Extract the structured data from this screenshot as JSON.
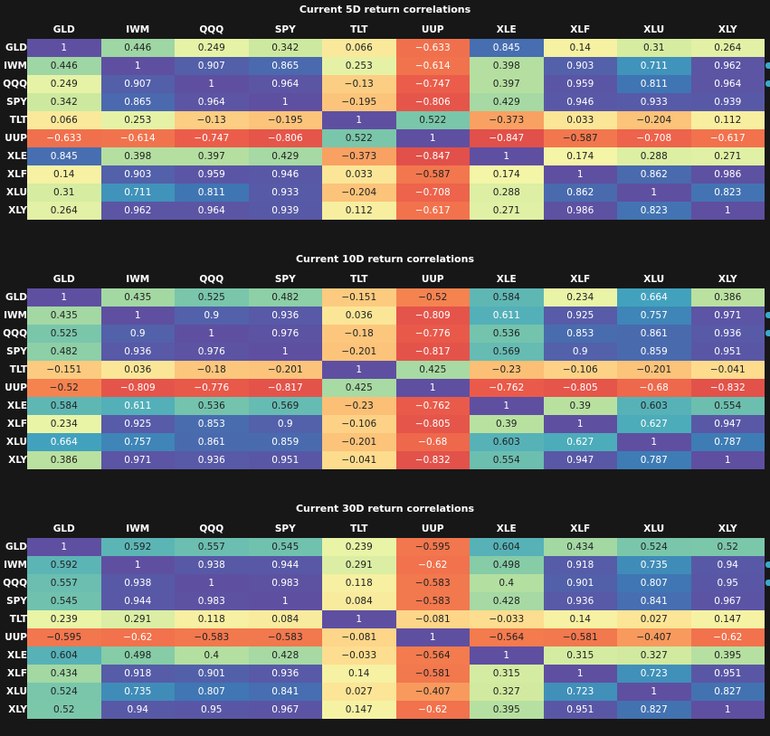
{
  "tickers": [
    "GLD",
    "IWM",
    "QQQ",
    "SPY",
    "TLT",
    "UUP",
    "XLE",
    "XLF",
    "XLU",
    "XLY"
  ],
  "colors": {
    "background": "#171717",
    "text_on_light": "#222222",
    "text_on_dark": "#ffffff",
    "edge_accent": "#3aa8c8"
  },
  "chart_data": [
    {
      "type": "heatmap",
      "title": "Current 5D return correlations",
      "x": [
        "GLD",
        "IWM",
        "QQQ",
        "SPY",
        "TLT",
        "UUP",
        "XLE",
        "XLF",
        "XLU",
        "XLY"
      ],
      "y": [
        "GLD",
        "IWM",
        "QQQ",
        "SPY",
        "TLT",
        "UUP",
        "XLE",
        "XLF",
        "XLU",
        "XLY"
      ],
      "values": [
        [
          "1",
          "0.446",
          "0.249",
          "0.342",
          "0.066",
          "-0.633",
          "0.845",
          "0.14",
          "0.31",
          "0.264"
        ],
        [
          "0.446",
          "1",
          "0.907",
          "0.865",
          "0.253",
          "-0.614",
          "0.398",
          "0.903",
          "0.711",
          "0.962"
        ],
        [
          "0.249",
          "0.907",
          "1",
          "0.964",
          "-0.13",
          "-0.747",
          "0.397",
          "0.959",
          "0.811",
          "0.964"
        ],
        [
          "0.342",
          "0.865",
          "0.964",
          "1",
          "-0.195",
          "-0.806",
          "0.429",
          "0.946",
          "0.933",
          "0.939"
        ],
        [
          "0.066",
          "0.253",
          "-0.13",
          "-0.195",
          "1",
          "0.522",
          "-0.373",
          "0.033",
          "-0.204",
          "0.112"
        ],
        [
          "-0.633",
          "-0.614",
          "-0.747",
          "-0.806",
          "0.522",
          "1",
          "-0.847",
          "-0.587",
          "-0.708",
          "-0.617"
        ],
        [
          "0.845",
          "0.398",
          "0.397",
          "0.429",
          "-0.373",
          "-0.847",
          "1",
          "0.174",
          "0.288",
          "0.271"
        ],
        [
          "0.14",
          "0.903",
          "0.959",
          "0.946",
          "0.033",
          "-0.587",
          "0.174",
          "1",
          "0.862",
          "0.986"
        ],
        [
          "0.31",
          "0.711",
          "0.811",
          "0.933",
          "-0.204",
          "-0.708",
          "0.288",
          "0.862",
          "1",
          "0.823"
        ],
        [
          "0.264",
          "0.962",
          "0.964",
          "0.939",
          "0.112",
          "-0.617",
          "0.271",
          "0.986",
          "0.823",
          "1"
        ]
      ],
      "value_range": [
        -1,
        1
      ],
      "colormap": "spectral"
    },
    {
      "type": "heatmap",
      "title": "Current 10D return correlations",
      "x": [
        "GLD",
        "IWM",
        "QQQ",
        "SPY",
        "TLT",
        "UUP",
        "XLE",
        "XLF",
        "XLU",
        "XLY"
      ],
      "y": [
        "GLD",
        "IWM",
        "QQQ",
        "SPY",
        "TLT",
        "UUP",
        "XLE",
        "XLF",
        "XLU",
        "XLY"
      ],
      "values": [
        [
          "1",
          "0.435",
          "0.525",
          "0.482",
          "-0.151",
          "-0.52",
          "0.584",
          "0.234",
          "0.664",
          "0.386"
        ],
        [
          "0.435",
          "1",
          "0.9",
          "0.936",
          "0.036",
          "-0.809",
          "0.611",
          "0.925",
          "0.757",
          "0.971"
        ],
        [
          "0.525",
          "0.9",
          "1",
          "0.976",
          "-0.18",
          "-0.776",
          "0.536",
          "0.853",
          "0.861",
          "0.936"
        ],
        [
          "0.482",
          "0.936",
          "0.976",
          "1",
          "-0.201",
          "-0.817",
          "0.569",
          "0.9",
          "0.859",
          "0.951"
        ],
        [
          "-0.151",
          "0.036",
          "-0.18",
          "-0.201",
          "1",
          "0.425",
          "-0.23",
          "-0.106",
          "-0.201",
          "-0.041"
        ],
        [
          "-0.52",
          "-0.809",
          "-0.776",
          "-0.817",
          "0.425",
          "1",
          "-0.762",
          "-0.805",
          "-0.68",
          "-0.832"
        ],
        [
          "0.584",
          "0.611",
          "0.536",
          "0.569",
          "-0.23",
          "-0.762",
          "1",
          "0.39",
          "0.603",
          "0.554"
        ],
        [
          "0.234",
          "0.925",
          "0.853",
          "0.9",
          "-0.106",
          "-0.805",
          "0.39",
          "1",
          "0.627",
          "0.947"
        ],
        [
          "0.664",
          "0.757",
          "0.861",
          "0.859",
          "-0.201",
          "-0.68",
          "0.603",
          "0.627",
          "1",
          "0.787"
        ],
        [
          "0.386",
          "0.971",
          "0.936",
          "0.951",
          "-0.041",
          "-0.832",
          "0.554",
          "0.947",
          "0.787",
          "1"
        ]
      ],
      "value_range": [
        -1,
        1
      ],
      "colormap": "spectral"
    },
    {
      "type": "heatmap",
      "title": "Current 30D return correlations",
      "x": [
        "GLD",
        "IWM",
        "QQQ",
        "SPY",
        "TLT",
        "UUP",
        "XLE",
        "XLF",
        "XLU",
        "XLY"
      ],
      "y": [
        "GLD",
        "IWM",
        "QQQ",
        "SPY",
        "TLT",
        "UUP",
        "XLE",
        "XLF",
        "XLU",
        "XLY"
      ],
      "values": [
        [
          "1",
          "0.592",
          "0.557",
          "0.545",
          "0.239",
          "-0.595",
          "0.604",
          "0.434",
          "0.524",
          "0.52"
        ],
        [
          "0.592",
          "1",
          "0.938",
          "0.944",
          "0.291",
          "-0.62",
          "0.498",
          "0.918",
          "0.735",
          "0.94"
        ],
        [
          "0.557",
          "0.938",
          "1",
          "0.983",
          "0.118",
          "-0.583",
          "0.4",
          "0.901",
          "0.807",
          "0.95"
        ],
        [
          "0.545",
          "0.944",
          "0.983",
          "1",
          "0.084",
          "-0.583",
          "0.428",
          "0.936",
          "0.841",
          "0.967"
        ],
        [
          "0.239",
          "0.291",
          "0.118",
          "0.084",
          "1",
          "-0.081",
          "-0.033",
          "0.14",
          "0.027",
          "0.147"
        ],
        [
          "-0.595",
          "-0.62",
          "-0.583",
          "-0.583",
          "-0.081",
          "1",
          "-0.564",
          "-0.581",
          "-0.407",
          "-0.62"
        ],
        [
          "0.604",
          "0.498",
          "0.4",
          "0.428",
          "-0.033",
          "-0.564",
          "1",
          "0.315",
          "0.327",
          "0.395"
        ],
        [
          "0.434",
          "0.918",
          "0.901",
          "0.936",
          "0.14",
          "-0.581",
          "0.315",
          "1",
          "0.723",
          "0.951"
        ],
        [
          "0.524",
          "0.735",
          "0.807",
          "0.841",
          "0.027",
          "-0.407",
          "0.327",
          "0.723",
          "1",
          "0.827"
        ],
        [
          "0.52",
          "0.94",
          "0.95",
          "0.967",
          "0.147",
          "-0.62",
          "0.395",
          "0.951",
          "0.827",
          "1"
        ]
      ],
      "value_range": [
        -1,
        1
      ],
      "colormap": "spectral"
    }
  ]
}
